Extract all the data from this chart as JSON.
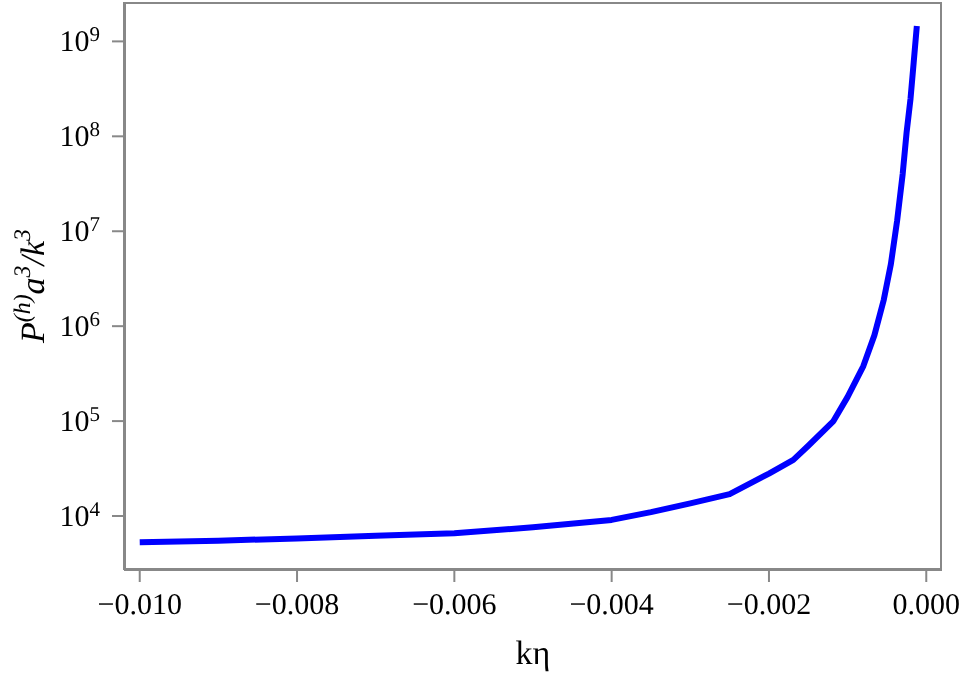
{
  "chart_data": {
    "type": "line",
    "xlabel": "kη",
    "ylabel": "P$^{(h)}$a$^{3}$/k$^{3}$",
    "x": [
      -0.01,
      -0.009,
      -0.008,
      -0.007,
      -0.006,
      -0.005,
      -0.004,
      -0.0035,
      -0.003,
      -0.0025,
      -0.002,
      -0.00169,
      -0.0015,
      -0.00118,
      -0.001,
      -0.0008,
      -0.00066,
      -0.00054,
      -0.00045,
      -0.00037,
      -0.0003,
      -0.00025,
      -0.0002,
      -0.00016,
      -0.00012
    ],
    "series": [
      {
        "color": "#0000ff",
        "values": [
          5300,
          5500,
          5800,
          6200,
          6600,
          7600,
          9100,
          11000,
          13600,
          17000,
          28000,
          39000,
          55000,
          100000,
          180000,
          380000,
          800000,
          1900000,
          4500000,
          13000000,
          40000000,
          110000000,
          250000000,
          600000000,
          1450000000
        ]
      }
    ],
    "xlim": [
      -0.0102,
      0.0002
    ],
    "ylim": [
      2700,
      2600000000
    ],
    "xticks": [
      {
        "value": -0.01,
        "label": "−0.010"
      },
      {
        "value": -0.008,
        "label": "−0.008"
      },
      {
        "value": -0.006,
        "label": "−0.006"
      },
      {
        "value": -0.004,
        "label": "−0.004"
      },
      {
        "value": -0.002,
        "label": "−0.002"
      },
      {
        "value": 0,
        "label": "0.000"
      }
    ],
    "yticks": [
      {
        "value": 10000,
        "label": "10$^{4}$"
      },
      {
        "value": 100000,
        "label": "10$^{5}$"
      },
      {
        "value": 1000000,
        "label": "10$^{6}$"
      },
      {
        "value": 10000000,
        "label": "10$^{7}$"
      },
      {
        "value": 100000000,
        "label": "10$^{8}$"
      },
      {
        "value": 1000000000,
        "label": "10$^{9}$"
      }
    ],
    "log": "y",
    "grid": false,
    "legend": false,
    "marker": "none",
    "line_style": "solid"
  }
}
